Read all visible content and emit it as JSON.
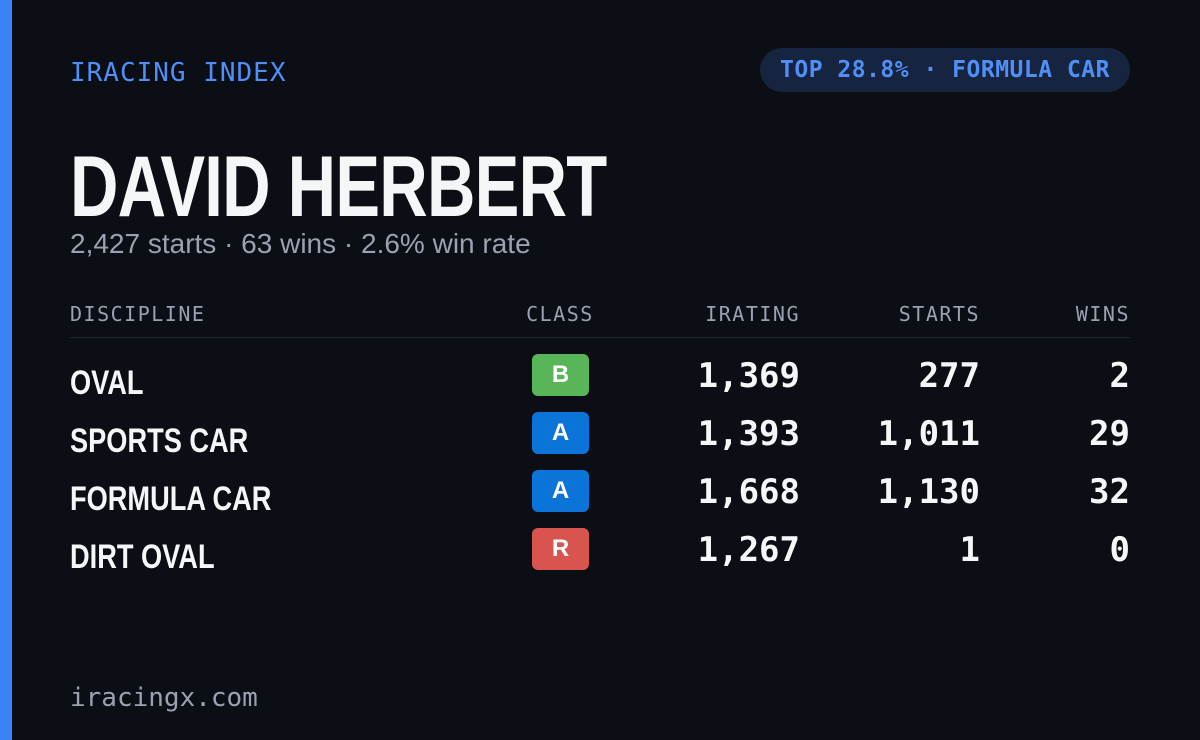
{
  "header": {
    "brand": "IRACING INDEX",
    "badge": "TOP 28.8% · FORMULA CAR"
  },
  "driver": {
    "name": "DAVID HERBERT",
    "summary": "2,427 starts · 63 wins · 2.6% win rate"
  },
  "table": {
    "columns": [
      "DISCIPLINE",
      "CLASS",
      "IRATING",
      "STARTS",
      "WINS"
    ],
    "rows": [
      [
        "OVAL",
        "B",
        "1,369",
        "277",
        "2"
      ],
      [
        "SPORTS CAR",
        "A",
        "1,393",
        "1,011",
        "29"
      ],
      [
        "FORMULA CAR",
        "A",
        "1,668",
        "1,130",
        "32"
      ],
      [
        "DIRT OVAL",
        "R",
        "1,267",
        "1",
        "0"
      ]
    ]
  },
  "footer": {
    "site": "iracingx.com"
  }
}
